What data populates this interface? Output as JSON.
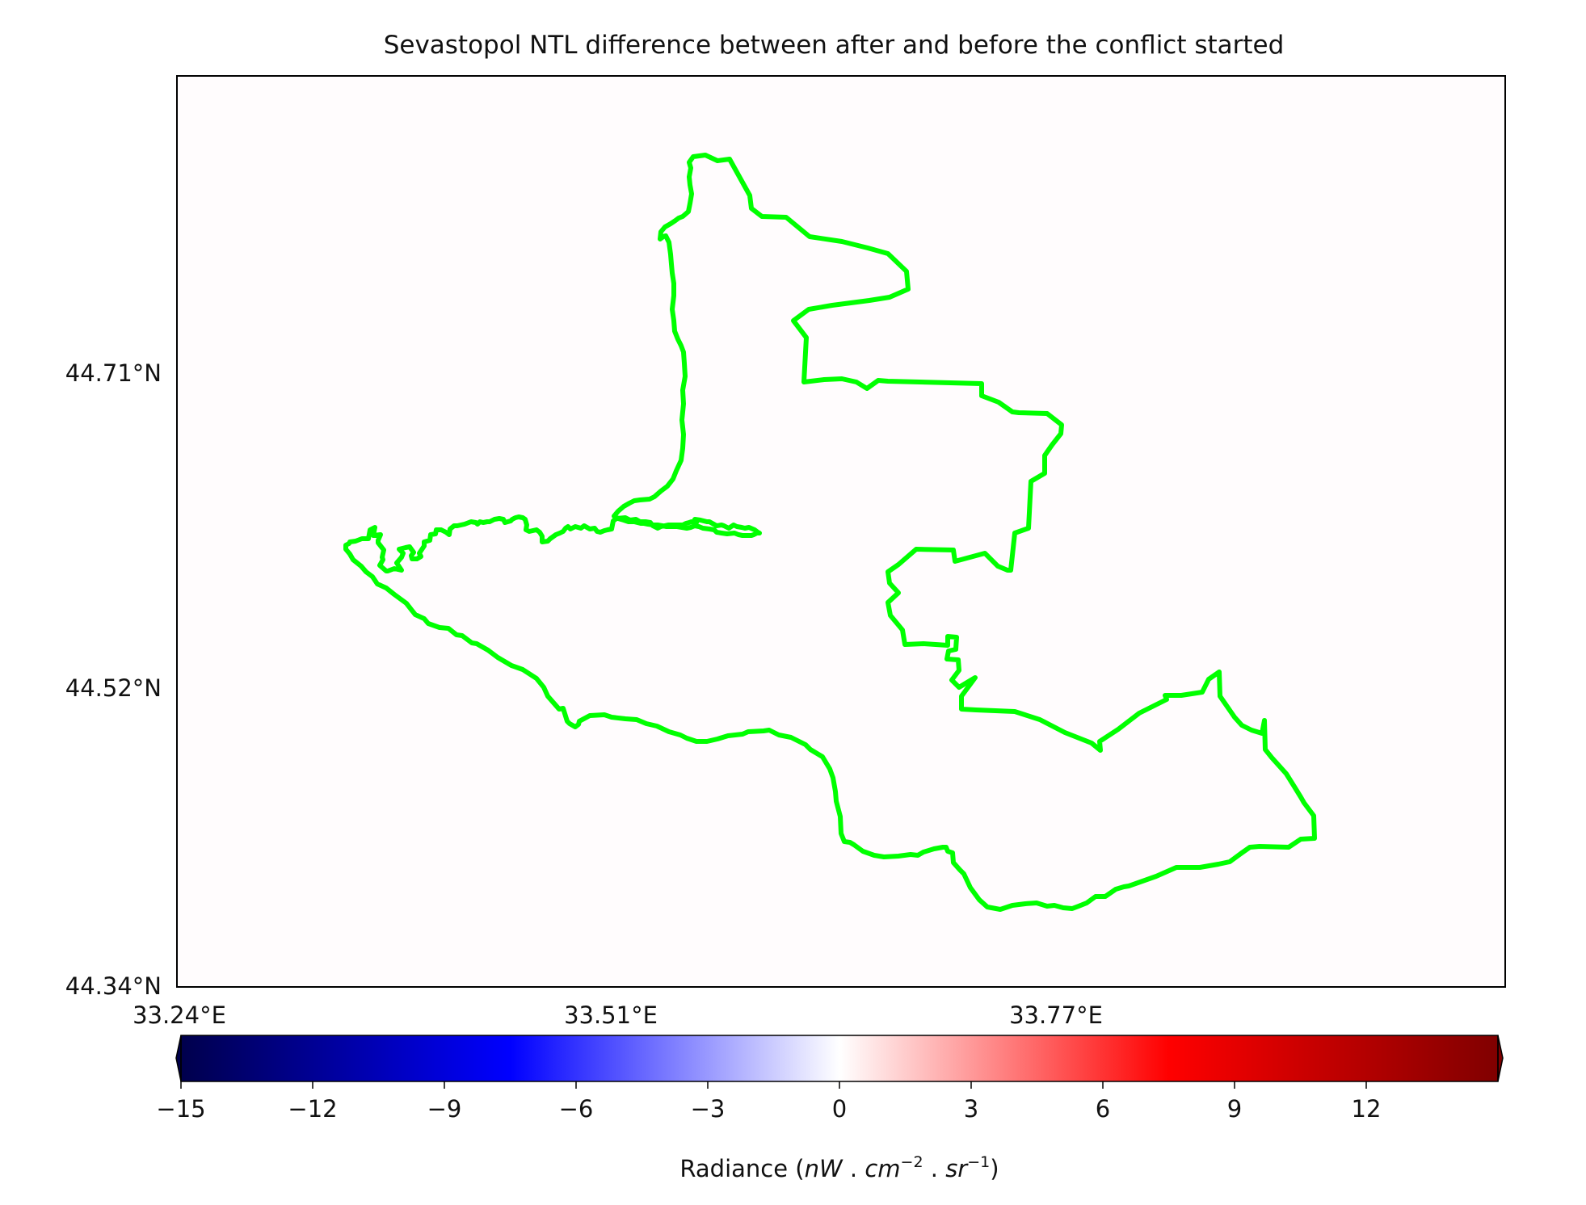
{
  "map": {
    "title": "Sevastopol NTL difference between after and before the conflict started",
    "lat_labels": [
      "44.71°N",
      "44.52°N",
      "44.34°N"
    ],
    "lon_labels": [
      "33.24°E",
      "33.51°E",
      "33.77°E"
    ],
    "boundary_color": "#00ff00",
    "frame_color": "#000000"
  },
  "colorbar": {
    "ticks": [
      "−15",
      "−12",
      "−9",
      "−6",
      "−3",
      "0",
      "3",
      "6",
      "9",
      "12"
    ],
    "range": [
      -15,
      15
    ],
    "colormap": "seismic",
    "extend": "both",
    "label_prefix": "Radiance (",
    "unit_base": "nW",
    "unit_dot1": " . ",
    "unit_cm": "cm",
    "unit_cm_exp": "−2",
    "unit_dot2": " . ",
    "unit_sr": "sr",
    "unit_sr_exp": "−1",
    "label_suffix": ")"
  }
}
